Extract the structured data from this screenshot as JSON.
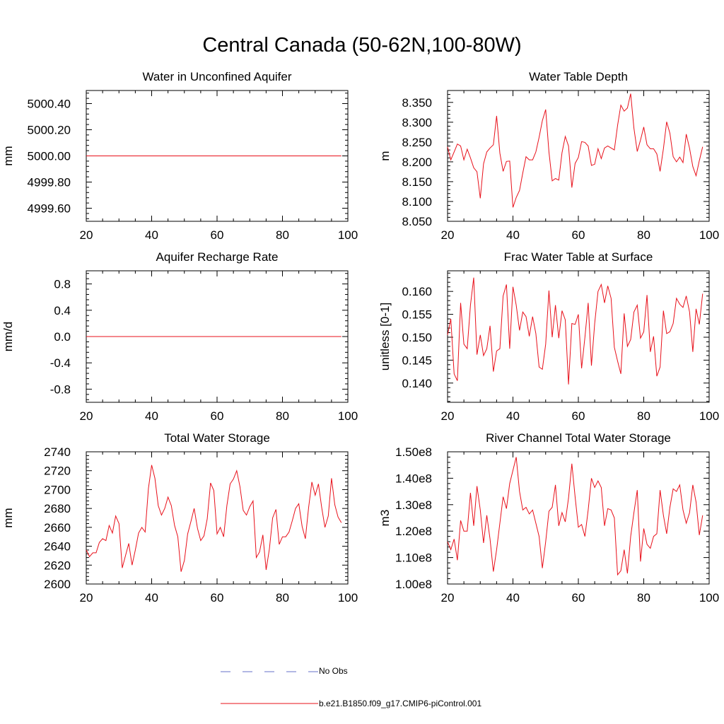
{
  "title": "Central Canada (50-62N,100-80W)",
  "colors": {
    "model": "#e8101a",
    "obs": "#6670c8",
    "axis": "#000000"
  },
  "legend": {
    "obs_label": "No Obs",
    "model_label": "b.e21.B1850.f09_g17.CMIP6-piControl.001"
  },
  "chart_data": [
    {
      "type": "line",
      "title": "Water in Unconfined Aquifer",
      "ylabel": "mm",
      "xlim": [
        20,
        100
      ],
      "ylim": [
        4999.5,
        5000.5
      ],
      "yticks": [
        4999.6,
        4999.8,
        5000.0,
        5000.2,
        5000.4
      ],
      "yticklabels": [
        "4999.60",
        "4999.80",
        "5000.00",
        "5000.20",
        "5000.40"
      ],
      "xticks": [
        20,
        40,
        60,
        80,
        100
      ],
      "xticklabels": [
        "20",
        "40",
        "60",
        "80",
        "100"
      ],
      "series": [
        {
          "name": "b.e21.B1850.f09_g17.CMIP6-piControl.001",
          "x_start": 20,
          "x_step": 1,
          "values": [
            5000,
            5000,
            5000,
            5000,
            5000,
            5000,
            5000,
            5000,
            5000,
            5000,
            5000,
            5000,
            5000,
            5000,
            5000,
            5000,
            5000,
            5000,
            5000,
            5000,
            5000,
            5000,
            5000,
            5000,
            5000,
            5000,
            5000,
            5000,
            5000,
            5000,
            5000,
            5000,
            5000,
            5000,
            5000,
            5000,
            5000,
            5000,
            5000,
            5000,
            5000,
            5000,
            5000,
            5000,
            5000,
            5000,
            5000,
            5000,
            5000,
            5000,
            5000,
            5000,
            5000,
            5000,
            5000,
            5000,
            5000,
            5000,
            5000,
            5000,
            5000,
            5000,
            5000,
            5000,
            5000,
            5000,
            5000,
            5000,
            5000,
            5000,
            5000,
            5000,
            5000,
            5000,
            5000,
            5000,
            5000,
            5000,
            5000
          ]
        }
      ]
    },
    {
      "type": "line",
      "title": "Water Table Depth",
      "ylabel": "m",
      "xlim": [
        20,
        100
      ],
      "ylim": [
        8.05,
        8.38
      ],
      "yticks": [
        8.05,
        8.1,
        8.15,
        8.2,
        8.25,
        8.3,
        8.35
      ],
      "yticklabels": [
        "8.050",
        "8.100",
        "8.150",
        "8.200",
        "8.250",
        "8.300",
        "8.350"
      ],
      "xticks": [
        20,
        40,
        60,
        80,
        100
      ],
      "xticklabels": [
        "20",
        "40",
        "60",
        "80",
        "100"
      ],
      "series": [
        {
          "name": "b.e21.B1850.f09_g17.CMIP6-piControl.001",
          "x_start": 20,
          "x_step": 1,
          "values": [
            8.238,
            8.205,
            8.225,
            8.245,
            8.24,
            8.205,
            8.232,
            8.21,
            8.185,
            8.175,
            8.108,
            8.195,
            8.225,
            8.235,
            8.243,
            8.316,
            8.222,
            8.176,
            8.201,
            8.202,
            8.085,
            8.11,
            8.128,
            8.172,
            8.213,
            8.205,
            8.205,
            8.225,
            8.262,
            8.304,
            8.332,
            8.225,
            8.152,
            8.158,
            8.154,
            8.223,
            8.264,
            8.24,
            8.135,
            8.196,
            8.211,
            8.251,
            8.249,
            8.24,
            8.191,
            8.194,
            8.233,
            8.208,
            8.235,
            8.24,
            8.235,
            8.23,
            8.292,
            8.343,
            8.328,
            8.336,
            8.372,
            8.285,
            8.226,
            8.255,
            8.288,
            8.243,
            8.233,
            8.233,
            8.22,
            8.176,
            8.233,
            8.301,
            8.272,
            8.213,
            8.2,
            8.212,
            8.198,
            8.27,
            8.234,
            8.188,
            8.165,
            8.203,
            8.238
          ]
        }
      ]
    },
    {
      "type": "line",
      "title": "Aquifer Recharge Rate",
      "ylabel": "mm/d",
      "xlim": [
        20,
        100
      ],
      "ylim": [
        -1,
        1
      ],
      "yticks": [
        -0.8,
        -0.4,
        0.0,
        0.4,
        0.8
      ],
      "yticklabels": [
        "-0.8",
        "-0.4",
        "0.0",
        "0.4",
        "0.8"
      ],
      "xticks": [
        20,
        40,
        60,
        80,
        100
      ],
      "xticklabels": [
        "20",
        "40",
        "60",
        "80",
        "100"
      ],
      "series": [
        {
          "name": "b.e21.B1850.f09_g17.CMIP6-piControl.001",
          "x_start": 20,
          "x_step": 1,
          "values": [
            0,
            0,
            0,
            0,
            0,
            0,
            0,
            0,
            0,
            0,
            0,
            0,
            0,
            0,
            0,
            0,
            0,
            0,
            0,
            0,
            0,
            0,
            0,
            0,
            0,
            0,
            0,
            0,
            0,
            0,
            0,
            0,
            0,
            0,
            0,
            0,
            0,
            0,
            0,
            0,
            0,
            0,
            0,
            0,
            0,
            0,
            0,
            0,
            0,
            0,
            0,
            0,
            0,
            0,
            0,
            0,
            0,
            0,
            0,
            0,
            0,
            0,
            0,
            0,
            0,
            0,
            0,
            0,
            0,
            0,
            0,
            0,
            0,
            0,
            0,
            0,
            0,
            0,
            0
          ]
        }
      ]
    },
    {
      "type": "line",
      "title": "Frac Water Table at Surface",
      "ylabel": "unitless [0-1]",
      "xlim": [
        20,
        100
      ],
      "ylim": [
        0.1358,
        0.1645
      ],
      "yticks": [
        0.14,
        0.145,
        0.15,
        0.155,
        0.16
      ],
      "yticklabels": [
        "0.140",
        "0.145",
        "0.150",
        "0.155",
        "0.160"
      ],
      "xticks": [
        20,
        40,
        60,
        80,
        100
      ],
      "xticklabels": [
        "20",
        "40",
        "60",
        "80",
        "100"
      ],
      "series": [
        {
          "name": "b.e21.B1850.f09_g17.CMIP6-piControl.001",
          "x_start": 20,
          "x_step": 1,
          "values": [
            0.1505,
            0.154,
            0.142,
            0.1405,
            0.1575,
            0.1485,
            0.1475,
            0.157,
            0.163,
            0.1462,
            0.1505,
            0.146,
            0.1475,
            0.1525,
            0.1425,
            0.147,
            0.1475,
            0.159,
            0.1615,
            0.1475,
            0.161,
            0.157,
            0.1515,
            0.1555,
            0.1545,
            0.1502,
            0.1545,
            0.1508,
            0.1435,
            0.143,
            0.1485,
            0.1602,
            0.15,
            0.157,
            0.1498,
            0.1558,
            0.1538,
            0.1397,
            0.153,
            0.1528,
            0.155,
            0.1432,
            0.15,
            0.1575,
            0.1438,
            0.153,
            0.16,
            0.1615,
            0.1575,
            0.1612,
            0.1585,
            0.1478,
            0.1448,
            0.142,
            0.1552,
            0.148,
            0.1495,
            0.1555,
            0.157,
            0.1498,
            0.1512,
            0.1592,
            0.1468,
            0.1502,
            0.1415,
            0.1435,
            0.1558,
            0.1508,
            0.1512,
            0.153,
            0.1585,
            0.1572,
            0.1565,
            0.159,
            0.1555,
            0.1468,
            0.1562,
            0.1528,
            0.1595
          ]
        }
      ]
    },
    {
      "type": "line",
      "title": "Total Water Storage",
      "ylabel": "mm",
      "xlim": [
        20,
        100
      ],
      "ylim": [
        2600,
        2740
      ],
      "yticks": [
        2600,
        2620,
        2640,
        2660,
        2680,
        2700,
        2720,
        2740
      ],
      "yticklabels": [
        "2600",
        "2620",
        "2640",
        "2660",
        "2680",
        "2700",
        "2720",
        "2740"
      ],
      "xticks": [
        20,
        40,
        60,
        80,
        100
      ],
      "xticklabels": [
        "20",
        "40",
        "60",
        "80",
        "100"
      ],
      "series": [
        {
          "name": "b.e21.B1850.f09_g17.CMIP6-piControl.001",
          "x_start": 20,
          "x_step": 1,
          "values": [
            2636,
            2629,
            2633,
            2633,
            2644,
            2648,
            2646,
            2662,
            2654,
            2672,
            2664,
            2617,
            2630,
            2643,
            2620,
            2636,
            2654,
            2660,
            2655,
            2701,
            2726,
            2712,
            2683,
            2673,
            2680,
            2692,
            2683,
            2662,
            2650,
            2613,
            2625,
            2653,
            2666,
            2680,
            2659,
            2646,
            2651,
            2669,
            2707,
            2699,
            2653,
            2660,
            2650,
            2683,
            2706,
            2711,
            2720,
            2703,
            2678,
            2673,
            2682,
            2688,
            2628,
            2634,
            2652,
            2615,
            2637,
            2670,
            2679,
            2642,
            2650,
            2650,
            2655,
            2667,
            2680,
            2685,
            2661,
            2648,
            2681,
            2708,
            2694,
            2706,
            2681,
            2660,
            2672,
            2712,
            2684,
            2671,
            2665
          ]
        }
      ]
    },
    {
      "type": "line",
      "title": "River Channel Total Water Storage",
      "ylabel": "m3",
      "xlim": [
        20,
        100
      ],
      "ylim": [
        100000000.0,
        150000000.0
      ],
      "yticks": [
        100000000.0,
        110000000.0,
        120000000.0,
        130000000.0,
        140000000.0,
        150000000.0
      ],
      "yticklabels": [
        "1.00e8",
        "1.10e8",
        "1.20e8",
        "1.30e8",
        "1.40e8",
        "1.50e8"
      ],
      "xticks": [
        20,
        40,
        60,
        80,
        100
      ],
      "xticklabels": [
        "20",
        "40",
        "60",
        "80",
        "100"
      ],
      "series": [
        {
          "name": "b.e21.B1850.f09_g17.CMIP6-piControl.001",
          "x_start": 20,
          "x_step": 1,
          "values": [
            116000000,
            113000000,
            117000000,
            109000000,
            124000000,
            120000000,
            120000000,
            134500000,
            122000000,
            137000000,
            128000000,
            115500000,
            126000000,
            117000000,
            104700000,
            113000000,
            123000000,
            133000000,
            128500000,
            138000000,
            143000000,
            148000000,
            135000000,
            128000000,
            129000000,
            126500000,
            128000000,
            123000000,
            118000000,
            106000000,
            116000000,
            127500000,
            129000000,
            137500000,
            122000000,
            127000000,
            123500000,
            132500000,
            145500000,
            133000000,
            121500000,
            122500000,
            118000000,
            128000000,
            140000000,
            136500000,
            139000000,
            136500000,
            122000000,
            128500000,
            128000000,
            125000000,
            103500000,
            105000000,
            113000000,
            104000000,
            118000000,
            127000000,
            135500000,
            108500000,
            121000000,
            115000000,
            113500000,
            118000000,
            119000000,
            135500000,
            126000000,
            119000000,
            129000000,
            136000000,
            135000000,
            137500000,
            128000000,
            123000000,
            127000000,
            137500000,
            131000000,
            118500000,
            126000000
          ]
        }
      ]
    }
  ]
}
